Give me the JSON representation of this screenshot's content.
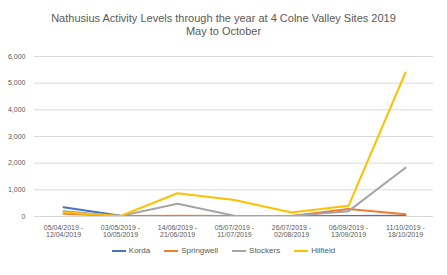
{
  "chart_data": {
    "type": "line",
    "title": "Nathusius Activity Levels through the year at 4 Colne Valley Sites 2019",
    "subtitle": "May to October",
    "categories": [
      "05/04/2019 - 12/04/2019",
      "03/05/2019 - 10/05/2019",
      "14/06/2019 - 21/06/2019",
      "05/07/2019 - 11/07/2019",
      "26/07/2019 - 02/08/2019",
      "06/09/2019 - 13/09/2019",
      "11/10/2019 - 18/10/2019"
    ],
    "series": [
      {
        "name": "Korda",
        "color": "#4472c4",
        "values": [
          350,
          30,
          20,
          10,
          10,
          20,
          30
        ]
      },
      {
        "name": "Springwell",
        "color": "#ed7d31",
        "values": [
          100,
          20,
          30,
          20,
          20,
          280,
          80
        ]
      },
      {
        "name": "Stockers",
        "color": "#a5a5a5",
        "values": [
          200,
          20,
          480,
          30,
          20,
          200,
          1830
        ]
      },
      {
        "name": "Hilfield",
        "color": "#ffc000",
        "values": [
          150,
          20,
          870,
          620,
          150,
          400,
          5400
        ]
      }
    ],
    "ylim": [
      0,
      6000
    ],
    "yticks": [
      0,
      1000,
      2000,
      3000,
      4000,
      5000,
      6000
    ],
    "grid": true,
    "legend": "bottom"
  }
}
